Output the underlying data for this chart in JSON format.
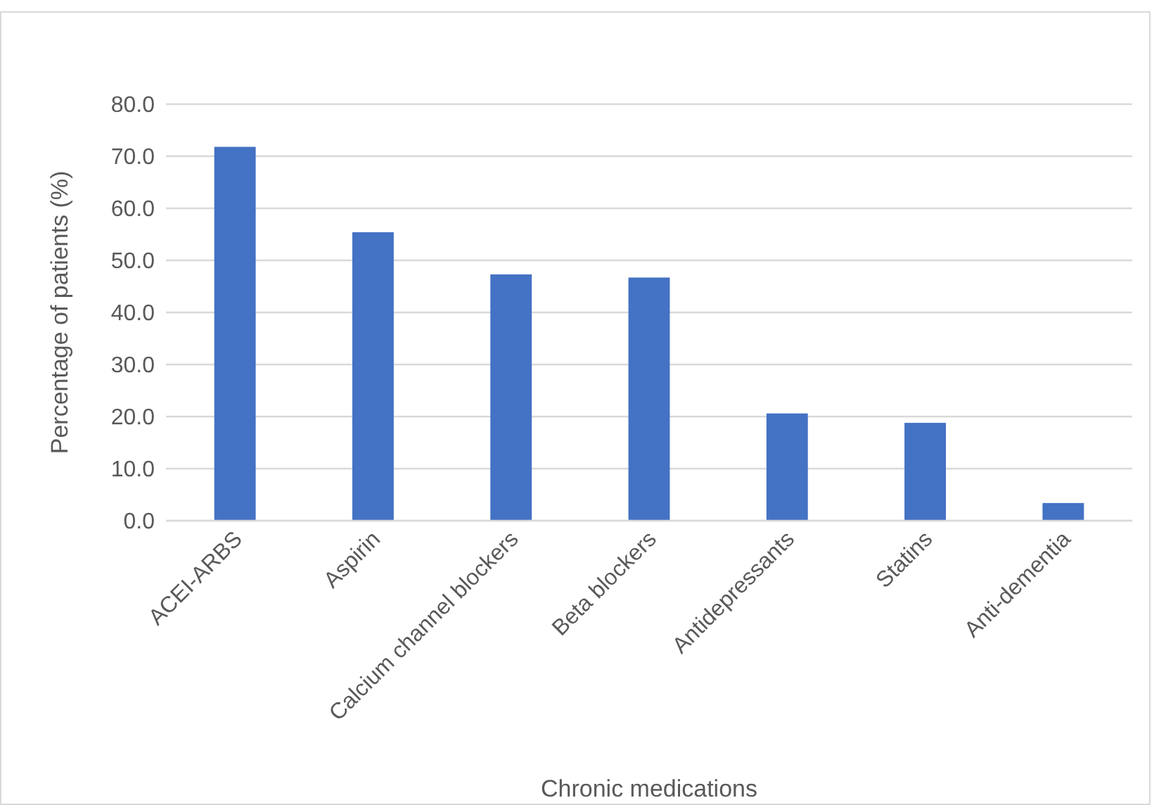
{
  "chart_data": {
    "type": "bar",
    "xlabel": "Chronic medications",
    "ylabel": "Percentage of patients (%)",
    "categories": [
      "ACEI-ARBS",
      "Aspirin",
      "Calcium channel blockers",
      "Beta blockers",
      "Antidepressants",
      "Statins",
      "Anti-dementia"
    ],
    "values": [
      71.8,
      55.4,
      47.3,
      46.7,
      20.6,
      18.8,
      3.4
    ],
    "color": "#4472c4",
    "ylim": [
      0,
      80
    ],
    "yticks": [
      {
        "value": 0,
        "label": "0.0"
      },
      {
        "value": 10,
        "label": "10.0"
      },
      {
        "value": 20,
        "label": "20.0"
      },
      {
        "value": 30,
        "label": "30.0"
      },
      {
        "value": 40,
        "label": "40.0"
      },
      {
        "value": 50,
        "label": "50.0"
      },
      {
        "value": 60,
        "label": "60.0"
      },
      {
        "value": 70,
        "label": "70.0"
      },
      {
        "value": 80,
        "label": "80.0"
      }
    ],
    "grid": "y"
  }
}
